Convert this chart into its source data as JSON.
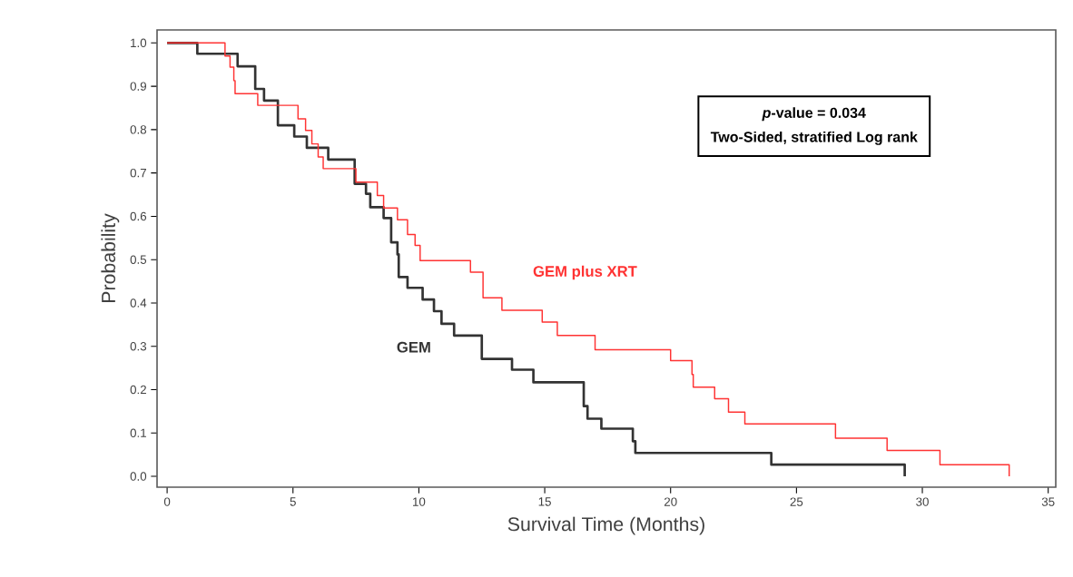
{
  "chart_data": {
    "type": "step",
    "xlabel": "Survival Time (Months)",
    "ylabel": "Probability",
    "annotations": [
      "*p*-value = 0.034",
      "Two-Sided, stratified Log rank"
    ],
    "series": [
      {
        "name": "GEM",
        "color": "#333333",
        "x": [
          0,
          1.2,
          2.8,
          3.5,
          3.85,
          4.4,
          5.05,
          5.55,
          6.4,
          7.45,
          7.9,
          8.07,
          8.6,
          8.9,
          9.15,
          9.2,
          9.55,
          10.15,
          10.6,
          10.9,
          11.4,
          12.5,
          13.7,
          14.55,
          16.55,
          16.7,
          17.25,
          18.5,
          18.6,
          24.0,
          29.3
        ],
        "values": [
          1.0,
          0.975,
          0.946,
          0.894,
          0.867,
          0.81,
          0.784,
          0.758,
          0.731,
          0.675,
          0.652,
          0.621,
          0.596,
          0.54,
          0.512,
          0.46,
          0.435,
          0.408,
          0.381,
          0.352,
          0.325,
          0.271,
          0.246,
          0.217,
          0.162,
          0.133,
          0.11,
          0.081,
          0.054,
          0.027,
          0.0
        ]
      },
      {
        "name": "GEM plus XRT",
        "color": "#ff3333",
        "x": [
          0,
          2.3,
          2.5,
          2.65,
          2.7,
          3.6,
          5.2,
          5.5,
          5.75,
          6.0,
          6.2,
          7.5,
          8.35,
          8.6,
          9.15,
          9.55,
          9.85,
          10.05,
          12.05,
          12.55,
          13.3,
          14.9,
          15.5,
          17.0,
          20.0,
          20.85,
          20.9,
          21.75,
          22.3,
          22.95,
          26.55,
          28.6,
          30.7,
          33.45
        ],
        "values": [
          1.0,
          0.97,
          0.944,
          0.913,
          0.883,
          0.856,
          0.825,
          0.798,
          0.767,
          0.737,
          0.71,
          0.679,
          0.648,
          0.619,
          0.592,
          0.558,
          0.533,
          0.498,
          0.471,
          0.412,
          0.383,
          0.356,
          0.325,
          0.292,
          0.267,
          0.235,
          0.206,
          0.179,
          0.148,
          0.121,
          0.088,
          0.06,
          0.027,
          0.0
        ]
      }
    ],
    "xlim": [
      -0.4,
      35.3
    ],
    "ylim": [
      -0.025,
      1.03
    ],
    "xticks": [
      0,
      5,
      10,
      15,
      20,
      25,
      30,
      35
    ],
    "yticks": [
      {
        "value": 0,
        "label": "0.0"
      },
      0.1,
      0.2,
      0.3,
      0.4,
      0.5,
      0.6,
      0.7,
      0.8,
      0.9,
      {
        "value": 1,
        "label": "1.0"
      }
    ]
  }
}
